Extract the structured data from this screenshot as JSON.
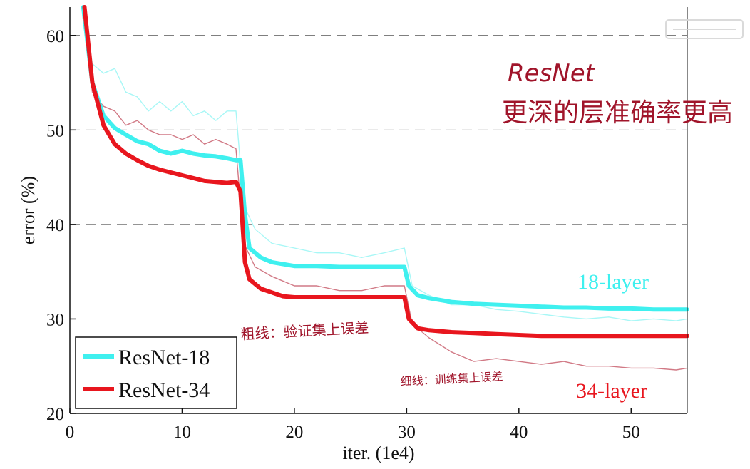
{
  "chart_data": {
    "type": "line",
    "xlabel": "iter. (1e4)",
    "ylabel": "error (%)",
    "xlim": [
      0,
      55
    ],
    "ylim": [
      20,
      63
    ],
    "xticks": [
      0,
      10,
      20,
      30,
      40,
      50
    ],
    "yticks": [
      20,
      30,
      40,
      50,
      60
    ],
    "grid": "horizontal dashed",
    "legend_position": "bottom-left",
    "legend": [
      "ResNet-18",
      "ResNet-34"
    ],
    "annotations": {
      "label_18": "18-layer",
      "label_34": "34-layer",
      "hand_title": "ResNet",
      "hand_subtitle": "更深的层准确率更高",
      "hand_thick": "粗线：验证集上误差",
      "hand_thin": "细线：训练集上误差"
    },
    "series": [
      {
        "name": "ResNet-18",
        "kind": "validation",
        "color": "#3ff0ef",
        "x": [
          1.2,
          2,
          3,
          4,
          5,
          6,
          7,
          8,
          9,
          10,
          11,
          12,
          13,
          14,
          14.8,
          15.2,
          15.6,
          16,
          17,
          18,
          19,
          20,
          22,
          24,
          26,
          28,
          29.8,
          30.2,
          31,
          32,
          34,
          36,
          38,
          40,
          42,
          44,
          46,
          48,
          50,
          52,
          54,
          55
        ],
        "y": [
          63,
          55,
          51.5,
          50.2,
          49.5,
          48.8,
          48.5,
          47.8,
          47.5,
          47.8,
          47.5,
          47.3,
          47.2,
          47,
          46.8,
          46.8,
          41,
          37.5,
          36.5,
          36,
          35.8,
          35.6,
          35.6,
          35.5,
          35.5,
          35.5,
          35.5,
          33.5,
          32.5,
          32.2,
          31.8,
          31.6,
          31.5,
          31.4,
          31.3,
          31.2,
          31.2,
          31.1,
          31.1,
          31,
          31,
          31
        ]
      },
      {
        "name": "ResNet-34",
        "kind": "validation",
        "color": "#e8161e",
        "x": [
          1.3,
          2,
          3,
          4,
          5,
          6,
          7,
          8,
          9,
          10,
          11,
          12,
          13,
          14,
          14.8,
          15.2,
          15.6,
          16,
          17,
          18,
          19,
          20,
          22,
          24,
          26,
          28,
          29.8,
          30.2,
          31,
          32,
          34,
          36,
          38,
          40,
          42,
          44,
          46,
          48,
          50,
          52,
          54,
          55
        ],
        "y": [
          63,
          55,
          50.5,
          48.5,
          47.5,
          46.8,
          46.2,
          45.8,
          45.5,
          45.2,
          44.9,
          44.6,
          44.5,
          44.4,
          44.5,
          43.5,
          36,
          34.2,
          33.2,
          32.8,
          32.4,
          32.3,
          32.3,
          32.3,
          32.3,
          32.3,
          32.3,
          30,
          29,
          28.8,
          28.6,
          28.5,
          28.4,
          28.3,
          28.2,
          28.2,
          28.2,
          28.2,
          28.2,
          28.2,
          28.2,
          28.2
        ]
      },
      {
        "name": "ResNet-18",
        "kind": "training",
        "color": "#9ff6f5",
        "x": [
          1.2,
          2,
          3,
          4,
          5,
          6,
          7,
          8,
          9,
          10,
          11,
          12,
          13,
          14,
          14.8,
          15.5,
          16.5,
          18,
          20,
          22,
          24,
          26,
          28,
          29.8,
          30.5,
          32,
          34,
          36,
          38,
          40,
          42,
          44,
          46,
          48,
          50,
          52,
          54,
          55
        ],
        "y": [
          63,
          57,
          56,
          56.5,
          54,
          53.5,
          52,
          53,
          52,
          53,
          51.5,
          52,
          51,
          52,
          52,
          42,
          39.5,
          38,
          37.5,
          37,
          37,
          36.5,
          37,
          37.5,
          33.5,
          32.5,
          31.5,
          31.5,
          31,
          30.8,
          30.5,
          30.2,
          30,
          30.2,
          29.8,
          30,
          29.8,
          30
        ]
      },
      {
        "name": "ResNet-34",
        "kind": "training",
        "color": "#cc6a78",
        "x": [
          1.3,
          2,
          3,
          4,
          5,
          6,
          7,
          8,
          9,
          10,
          11,
          12,
          13,
          14,
          14.8,
          15.5,
          16.5,
          18,
          20,
          22,
          24,
          26,
          28,
          29.8,
          30.5,
          32,
          34,
          36,
          38,
          40,
          42,
          44,
          46,
          48,
          50,
          52,
          54,
          55
        ],
        "y": [
          63,
          54,
          52.5,
          52,
          50.5,
          51,
          50,
          49.5,
          49.5,
          49,
          49.5,
          48.5,
          49,
          48.5,
          48,
          38,
          35.5,
          34.5,
          33.5,
          33.5,
          33,
          33,
          33.5,
          33.5,
          29.5,
          28,
          26.5,
          25.5,
          25.8,
          25.5,
          25.2,
          25.5,
          25,
          25,
          24.8,
          24.8,
          24.6,
          24.8
        ]
      }
    ]
  }
}
